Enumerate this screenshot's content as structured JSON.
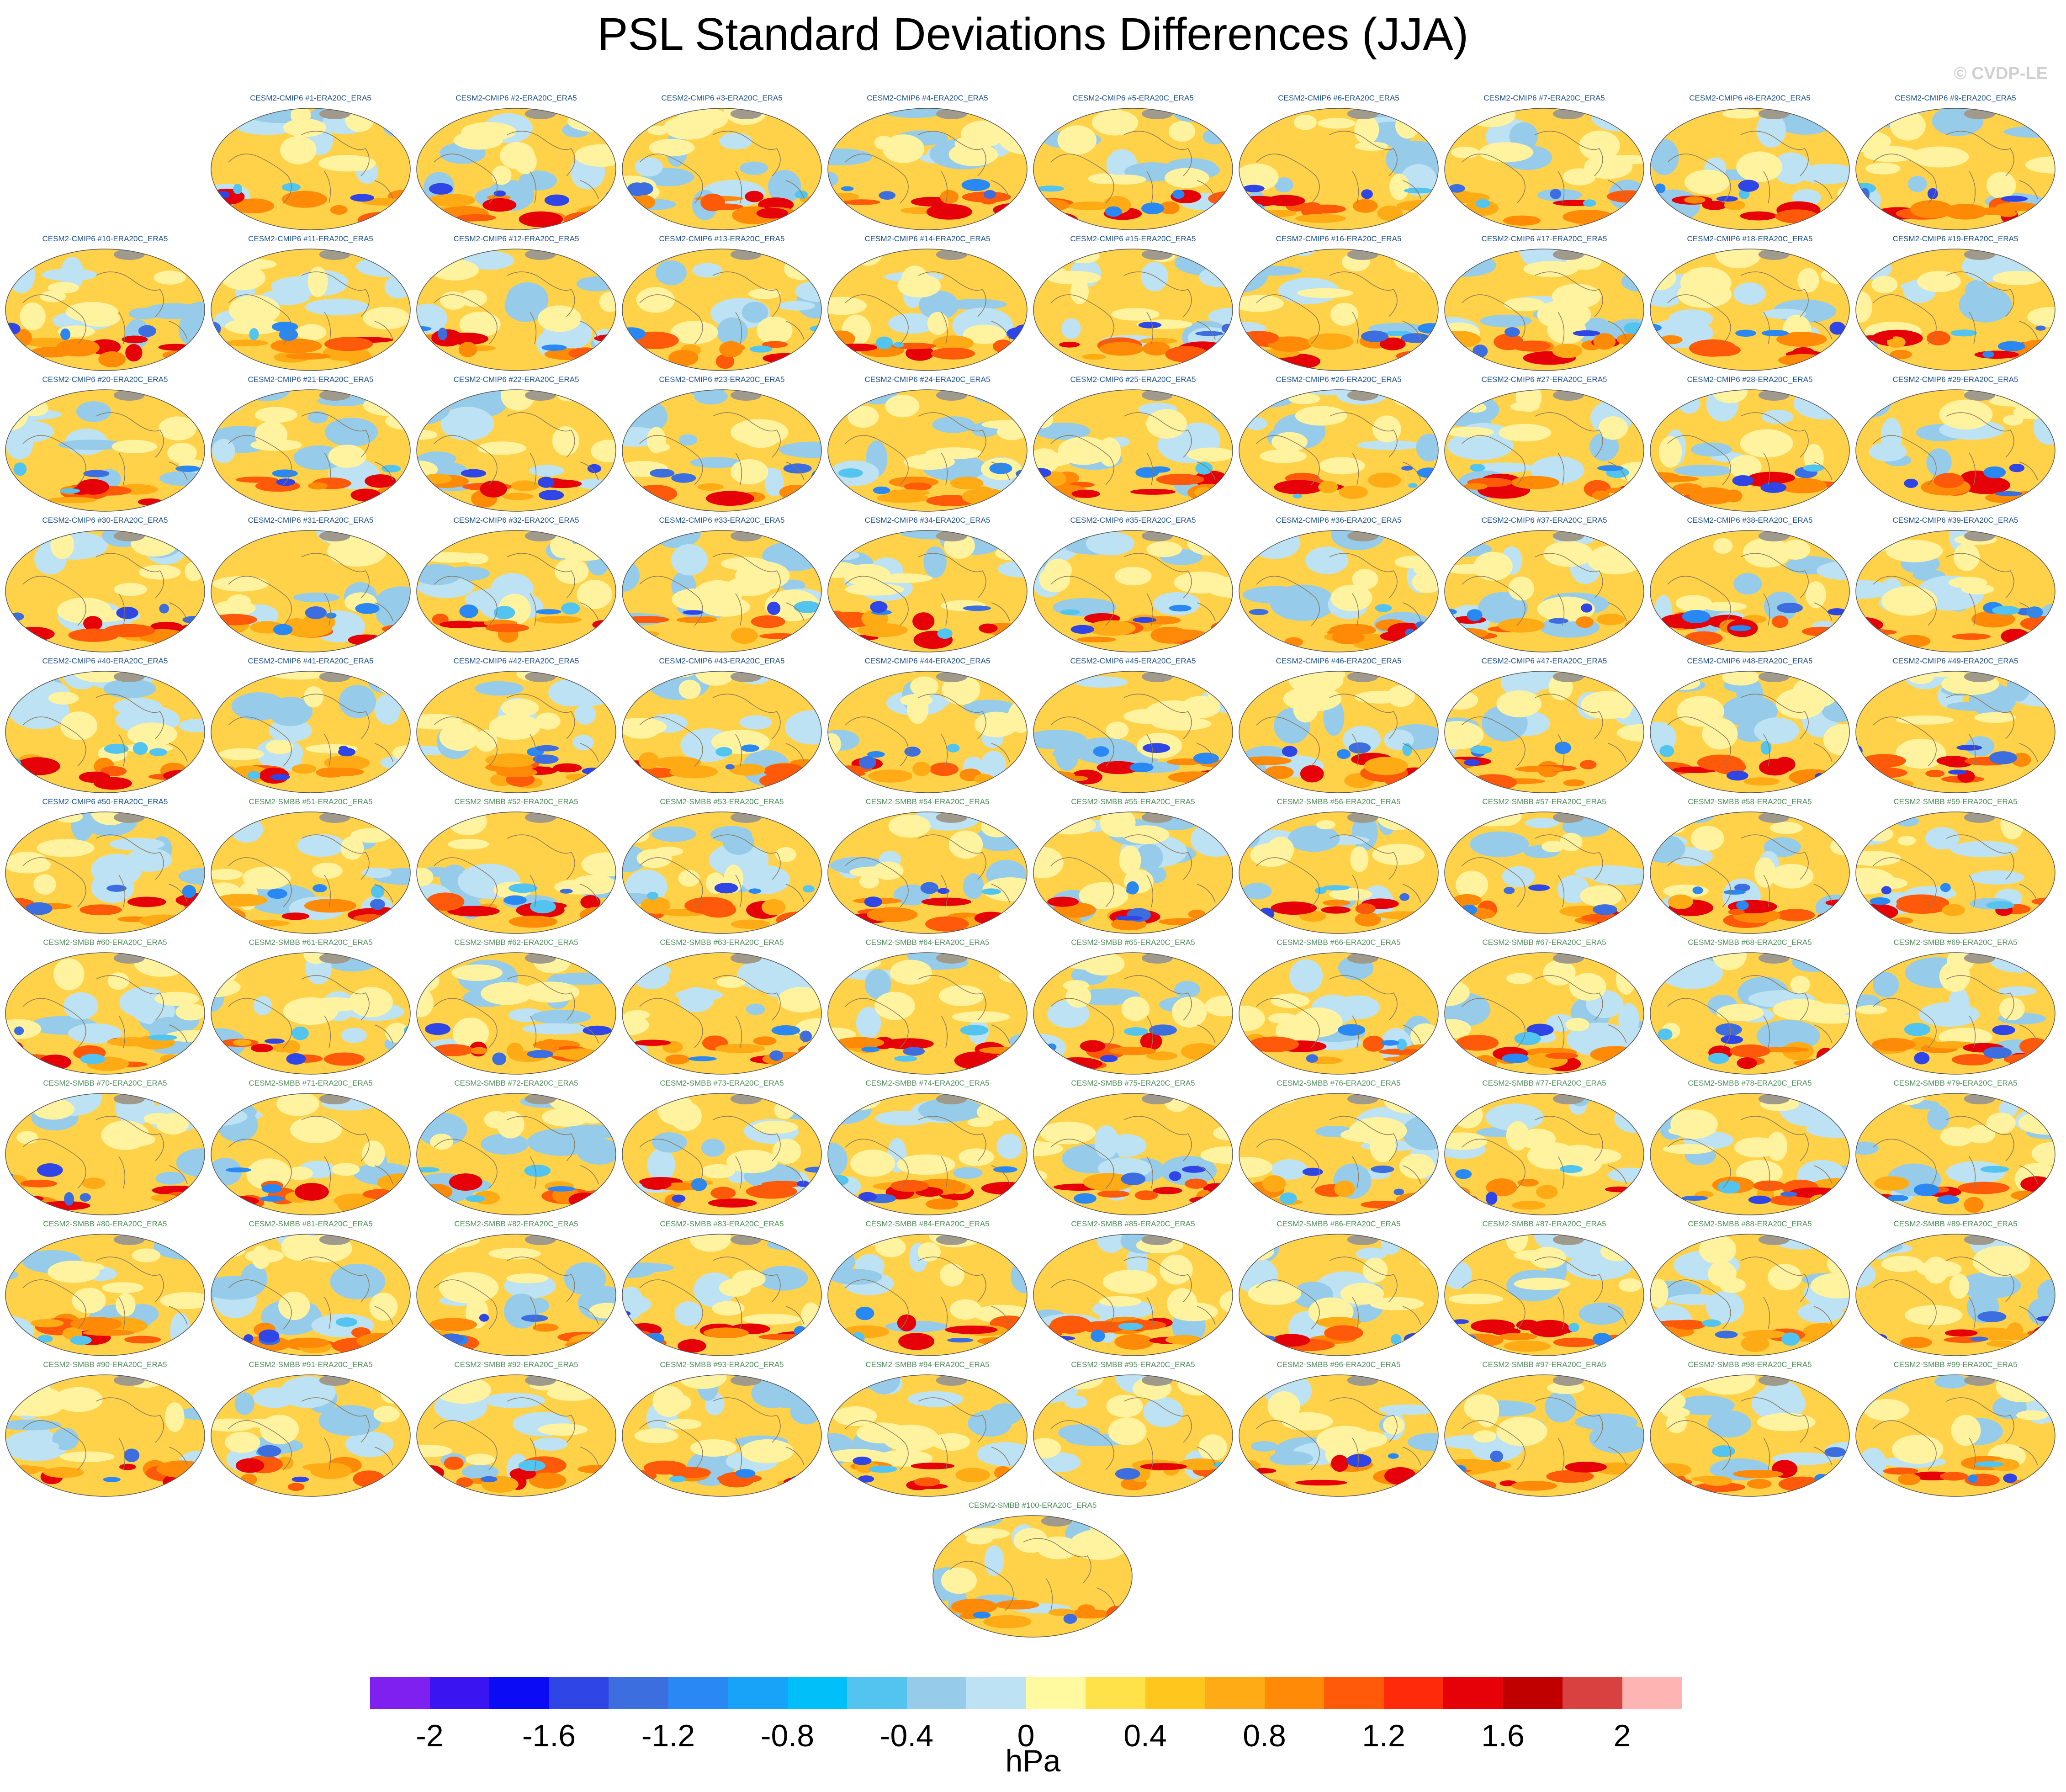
{
  "title": "PSL Standard Deviations Differences (JJA)",
  "copyright": "© CVDP-LE",
  "panel_colors": {
    "CMIP6": "#1a4f8a",
    "SMBB": "#4d8c5a"
  },
  "panels": [
    {
      "label": "CESM2-CMIP6 #1-ERA20C_ERA5",
      "group": "CMIP6"
    },
    {
      "label": "CESM2-CMIP6 #2-ERA20C_ERA5",
      "group": "CMIP6"
    },
    {
      "label": "CESM2-CMIP6 #3-ERA20C_ERA5",
      "group": "CMIP6"
    },
    {
      "label": "CESM2-CMIP6 #4-ERA20C_ERA5",
      "group": "CMIP6"
    },
    {
      "label": "CESM2-CMIP6 #5-ERA20C_ERA5",
      "group": "CMIP6"
    },
    {
      "label": "CESM2-CMIP6 #6-ERA20C_ERA5",
      "group": "CMIP6"
    },
    {
      "label": "CESM2-CMIP6 #7-ERA20C_ERA5",
      "group": "CMIP6"
    },
    {
      "label": "CESM2-CMIP6 #8-ERA20C_ERA5",
      "group": "CMIP6"
    },
    {
      "label": "CESM2-CMIP6 #9-ERA20C_ERA5",
      "group": "CMIP6"
    },
    {
      "label": "CESM2-CMIP6 #10-ERA20C_ERA5",
      "group": "CMIP6"
    },
    {
      "label": "CESM2-CMIP6 #11-ERA20C_ERA5",
      "group": "CMIP6"
    },
    {
      "label": "CESM2-CMIP6 #12-ERA20C_ERA5",
      "group": "CMIP6"
    },
    {
      "label": "CESM2-CMIP6 #13-ERA20C_ERA5",
      "group": "CMIP6"
    },
    {
      "label": "CESM2-CMIP6 #14-ERA20C_ERA5",
      "group": "CMIP6"
    },
    {
      "label": "CESM2-CMIP6 #15-ERA20C_ERA5",
      "group": "CMIP6"
    },
    {
      "label": "CESM2-CMIP6 #16-ERA20C_ERA5",
      "group": "CMIP6"
    },
    {
      "label": "CESM2-CMIP6 #17-ERA20C_ERA5",
      "group": "CMIP6"
    },
    {
      "label": "CESM2-CMIP6 #18-ERA20C_ERA5",
      "group": "CMIP6"
    },
    {
      "label": "CESM2-CMIP6 #19-ERA20C_ERA5",
      "group": "CMIP6"
    },
    {
      "label": "CESM2-CMIP6 #20-ERA20C_ERA5",
      "group": "CMIP6"
    },
    {
      "label": "CESM2-CMIP6 #21-ERA20C_ERA5",
      "group": "CMIP6"
    },
    {
      "label": "CESM2-CMIP6 #22-ERA20C_ERA5",
      "group": "CMIP6"
    },
    {
      "label": "CESM2-CMIP6 #23-ERA20C_ERA5",
      "group": "CMIP6"
    },
    {
      "label": "CESM2-CMIP6 #24-ERA20C_ERA5",
      "group": "CMIP6"
    },
    {
      "label": "CESM2-CMIP6 #25-ERA20C_ERA5",
      "group": "CMIP6"
    },
    {
      "label": "CESM2-CMIP6 #26-ERA20C_ERA5",
      "group": "CMIP6"
    },
    {
      "label": "CESM2-CMIP6 #27-ERA20C_ERA5",
      "group": "CMIP6"
    },
    {
      "label": "CESM2-CMIP6 #28-ERA20C_ERA5",
      "group": "CMIP6"
    },
    {
      "label": "CESM2-CMIP6 #29-ERA20C_ERA5",
      "group": "CMIP6"
    },
    {
      "label": "CESM2-CMIP6 #30-ERA20C_ERA5",
      "group": "CMIP6"
    },
    {
      "label": "CESM2-CMIP6 #31-ERA20C_ERA5",
      "group": "CMIP6"
    },
    {
      "label": "CESM2-CMIP6 #32-ERA20C_ERA5",
      "group": "CMIP6"
    },
    {
      "label": "CESM2-CMIP6 #33-ERA20C_ERA5",
      "group": "CMIP6"
    },
    {
      "label": "CESM2-CMIP6 #34-ERA20C_ERA5",
      "group": "CMIP6"
    },
    {
      "label": "CESM2-CMIP6 #35-ERA20C_ERA5",
      "group": "CMIP6"
    },
    {
      "label": "CESM2-CMIP6 #36-ERA20C_ERA5",
      "group": "CMIP6"
    },
    {
      "label": "CESM2-CMIP6 #37-ERA20C_ERA5",
      "group": "CMIP6"
    },
    {
      "label": "CESM2-CMIP6 #38-ERA20C_ERA5",
      "group": "CMIP6"
    },
    {
      "label": "CESM2-CMIP6 #39-ERA20C_ERA5",
      "group": "CMIP6"
    },
    {
      "label": "CESM2-CMIP6 #40-ERA20C_ERA5",
      "group": "CMIP6"
    },
    {
      "label": "CESM2-CMIP6 #41-ERA20C_ERA5",
      "group": "CMIP6"
    },
    {
      "label": "CESM2-CMIP6 #42-ERA20C_ERA5",
      "group": "CMIP6"
    },
    {
      "label": "CESM2-CMIP6 #43-ERA20C_ERA5",
      "group": "CMIP6"
    },
    {
      "label": "CESM2-CMIP6 #44-ERA20C_ERA5",
      "group": "CMIP6"
    },
    {
      "label": "CESM2-CMIP6 #45-ERA20C_ERA5",
      "group": "CMIP6"
    },
    {
      "label": "CESM2-CMIP6 #46-ERA20C_ERA5",
      "group": "CMIP6"
    },
    {
      "label": "CESM2-CMIP6 #47-ERA20C_ERA5",
      "group": "CMIP6"
    },
    {
      "label": "CESM2-CMIP6 #48-ERA20C_ERA5",
      "group": "CMIP6"
    },
    {
      "label": "CESM2-CMIP6 #49-ERA20C_ERA5",
      "group": "CMIP6"
    },
    {
      "label": "CESM2-CMIP6 #50-ERA20C_ERA5",
      "group": "CMIP6"
    },
    {
      "label": "CESM2-SMBB #51-ERA20C_ERA5",
      "group": "SMBB"
    },
    {
      "label": "CESM2-SMBB #52-ERA20C_ERA5",
      "group": "SMBB"
    },
    {
      "label": "CESM2-SMBB #53-ERA20C_ERA5",
      "group": "SMBB"
    },
    {
      "label": "CESM2-SMBB #54-ERA20C_ERA5",
      "group": "SMBB"
    },
    {
      "label": "CESM2-SMBB #55-ERA20C_ERA5",
      "group": "SMBB"
    },
    {
      "label": "CESM2-SMBB #56-ERA20C_ERA5",
      "group": "SMBB"
    },
    {
      "label": "CESM2-SMBB #57-ERA20C_ERA5",
      "group": "SMBB"
    },
    {
      "label": "CESM2-SMBB #58-ERA20C_ERA5",
      "group": "SMBB"
    },
    {
      "label": "CESM2-SMBB #59-ERA20C_ERA5",
      "group": "SMBB"
    },
    {
      "label": "CESM2-SMBB #60-ERA20C_ERA5",
      "group": "SMBB"
    },
    {
      "label": "CESM2-SMBB #61-ERA20C_ERA5",
      "group": "SMBB"
    },
    {
      "label": "CESM2-SMBB #62-ERA20C_ERA5",
      "group": "SMBB"
    },
    {
      "label": "CESM2-SMBB #63-ERA20C_ERA5",
      "group": "SMBB"
    },
    {
      "label": "CESM2-SMBB #64-ERA20C_ERA5",
      "group": "SMBB"
    },
    {
      "label": "CESM2-SMBB #65-ERA20C_ERA5",
      "group": "SMBB"
    },
    {
      "label": "CESM2-SMBB #66-ERA20C_ERA5",
      "group": "SMBB"
    },
    {
      "label": "CESM2-SMBB #67-ERA20C_ERA5",
      "group": "SMBB"
    },
    {
      "label": "CESM2-SMBB #68-ERA20C_ERA5",
      "group": "SMBB"
    },
    {
      "label": "CESM2-SMBB #69-ERA20C_ERA5",
      "group": "SMBB"
    },
    {
      "label": "CESM2-SMBB #70-ERA20C_ERA5",
      "group": "SMBB"
    },
    {
      "label": "CESM2-SMBB #71-ERA20C_ERA5",
      "group": "SMBB"
    },
    {
      "label": "CESM2-SMBB #72-ERA20C_ERA5",
      "group": "SMBB"
    },
    {
      "label": "CESM2-SMBB #73-ERA20C_ERA5",
      "group": "SMBB"
    },
    {
      "label": "CESM2-SMBB #74-ERA20C_ERA5",
      "group": "SMBB"
    },
    {
      "label": "CESM2-SMBB #75-ERA20C_ERA5",
      "group": "SMBB"
    },
    {
      "label": "CESM2-SMBB #76-ERA20C_ERA5",
      "group": "SMBB"
    },
    {
      "label": "CESM2-SMBB #77-ERA20C_ERA5",
      "group": "SMBB"
    },
    {
      "label": "CESM2-SMBB #78-ERA20C_ERA5",
      "group": "SMBB"
    },
    {
      "label": "CESM2-SMBB #79-ERA20C_ERA5",
      "group": "SMBB"
    },
    {
      "label": "CESM2-SMBB #80-ERA20C_ERA5",
      "group": "SMBB"
    },
    {
      "label": "CESM2-SMBB #81-ERA20C_ERA5",
      "group": "SMBB"
    },
    {
      "label": "CESM2-SMBB #82-ERA20C_ERA5",
      "group": "SMBB"
    },
    {
      "label": "CESM2-SMBB #83-ERA20C_ERA5",
      "group": "SMBB"
    },
    {
      "label": "CESM2-SMBB #84-ERA20C_ERA5",
      "group": "SMBB"
    },
    {
      "label": "CESM2-SMBB #85-ERA20C_ERA5",
      "group": "SMBB"
    },
    {
      "label": "CESM2-SMBB #86-ERA20C_ERA5",
      "group": "SMBB"
    },
    {
      "label": "CESM2-SMBB #87-ERA20C_ERA5",
      "group": "SMBB"
    },
    {
      "label": "CESM2-SMBB #88-ERA20C_ERA5",
      "group": "SMBB"
    },
    {
      "label": "CESM2-SMBB #89-ERA20C_ERA5",
      "group": "SMBB"
    },
    {
      "label": "CESM2-SMBB #90-ERA20C_ERA5",
      "group": "SMBB"
    },
    {
      "label": "CESM2-SMBB #91-ERA20C_ERA5",
      "group": "SMBB"
    },
    {
      "label": "CESM2-SMBB #92-ERA20C_ERA5",
      "group": "SMBB"
    },
    {
      "label": "CESM2-SMBB #93-ERA20C_ERA5",
      "group": "SMBB"
    },
    {
      "label": "CESM2-SMBB #94-ERA20C_ERA5",
      "group": "SMBB"
    },
    {
      "label": "CESM2-SMBB #95-ERA20C_ERA5",
      "group": "SMBB"
    },
    {
      "label": "CESM2-SMBB #96-ERA20C_ERA5",
      "group": "SMBB"
    },
    {
      "label": "CESM2-SMBB #97-ERA20C_ERA5",
      "group": "SMBB"
    },
    {
      "label": "CESM2-SMBB #98-ERA20C_ERA5",
      "group": "SMBB"
    },
    {
      "label": "CESM2-SMBB #99-ERA20C_ERA5",
      "group": "SMBB"
    },
    {
      "label": "CESM2-SMBB #100-ERA20C_ERA5",
      "group": "SMBB"
    }
  ],
  "colorbar": {
    "unit": "hPa",
    "colors": [
      "#7f1ff0",
      "#3b14f2",
      "#0b0cf5",
      "#2f45e6",
      "#3c6ee0",
      "#2a88f5",
      "#18a3f8",
      "#00bff9",
      "#52c4ef",
      "#96cce9",
      "#bde2f4",
      "#fffaa0",
      "#ffe24a",
      "#ffc61e",
      "#ffab16",
      "#ff8a08",
      "#ff5a0a",
      "#ff2a0a",
      "#e60008",
      "#c00000",
      "#d94040",
      "#ffb4b4"
    ],
    "tick_labels": [
      "-2",
      "-1.6",
      "-1.2",
      "-0.8",
      "-0.4",
      "0",
      "0.4",
      "0.8",
      "1.2",
      "1.6",
      "2"
    ]
  }
}
